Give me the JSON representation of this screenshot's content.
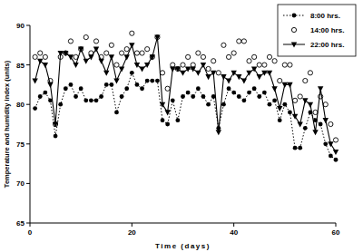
{
  "chart_data": {
    "type": "line",
    "x_label": "Time (days)",
    "y_label": "Temperature and humidity index (units)",
    "x": [
      1,
      2,
      3,
      4,
      5,
      6,
      7,
      8,
      9,
      10,
      11,
      12,
      13,
      14,
      15,
      16,
      17,
      18,
      19,
      20,
      21,
      22,
      23,
      24,
      25,
      26,
      27,
      28,
      29,
      30,
      31,
      32,
      33,
      34,
      35,
      36,
      37,
      38,
      39,
      40,
      41,
      42,
      43,
      44,
      45,
      46,
      47,
      48,
      49,
      50,
      51,
      52,
      53,
      54,
      55,
      56,
      57,
      58,
      59,
      60
    ],
    "series": [
      {
        "name": "8:00 hrs.",
        "color": "#000000",
        "marker": "filled_circle",
        "line_style": "dotted",
        "values": [
          79.5,
          81,
          81.5,
          80.5,
          76,
          80,
          82,
          82.5,
          81,
          82,
          80.5,
          80.5,
          80.5,
          81,
          82.5,
          82.5,
          79,
          81,
          82,
          84,
          82.5,
          82,
          83,
          83,
          83,
          78,
          77.5,
          80.5,
          78,
          81,
          81.5,
          81,
          82,
          81,
          80,
          81,
          77,
          80,
          82,
          81.5,
          81,
          80.5,
          81.5,
          82,
          81,
          81.5,
          80,
          80.5,
          78,
          80,
          79,
          74.5,
          74.5,
          77,
          79,
          78,
          77.5,
          75,
          73.5,
          73
        ]
      },
      {
        "name": "14:00 hrs.",
        "color": "#000000",
        "marker": "open_circle",
        "line_style": "none",
        "values": [
          86,
          86.5,
          86,
          83,
          77.5,
          86,
          86.5,
          88,
          86,
          87,
          88.5,
          86.5,
          88,
          86,
          86.5,
          87.5,
          85,
          86.5,
          87,
          89,
          86.5,
          86.5,
          87,
          86,
          88.5,
          84,
          82,
          85,
          84.5,
          85,
          86,
          85,
          86.5,
          86,
          84.5,
          85.5,
          84,
          87.5,
          86,
          86.5,
          88,
          88,
          85.5,
          86,
          85,
          85,
          86,
          85.5,
          83,
          85,
          85,
          80.5,
          81,
          83,
          84,
          79,
          81,
          80,
          77.5,
          75.5
        ]
      },
      {
        "name": "22:00 hrs.",
        "color": "#000000",
        "marker": "triangle_down",
        "line_style": "solid",
        "values": [
          83,
          85.5,
          85,
          82.5,
          77.5,
          86.5,
          86.5,
          86,
          85,
          87,
          85.5,
          86,
          87,
          85.5,
          84,
          86,
          83,
          84.5,
          86,
          87.5,
          85,
          84.5,
          85,
          86,
          88.5,
          80,
          79,
          84.5,
          84.5,
          84,
          84.5,
          84.5,
          84,
          85,
          83.5,
          84,
          76.5,
          83.5,
          83,
          84,
          83.5,
          83,
          84,
          84.5,
          83.5,
          84,
          84,
          82,
          79.5,
          82.5,
          82.5,
          78.5,
          77.5,
          80.5,
          80,
          76.5,
          82,
          78,
          75,
          74
        ]
      }
    ],
    "xlim": [
      0,
      60
    ],
    "xticks": [
      0,
      20,
      40,
      60
    ],
    "ylim": [
      65,
      90
    ],
    "yticks": [
      65,
      70,
      75,
      80,
      85,
      90
    ],
    "grid": false,
    "legend": "top-right"
  }
}
